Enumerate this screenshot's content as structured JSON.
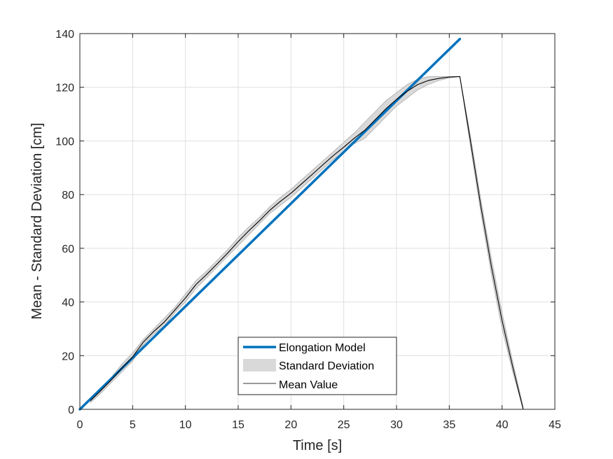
{
  "chart_data": {
    "type": "line",
    "xlabel": "Time [s]",
    "ylabel": "Mean - Standard Deviation [cm]",
    "xlim": [
      0,
      45
    ],
    "ylim": [
      0,
      140
    ],
    "xticks": [
      0,
      5,
      10,
      15,
      20,
      25,
      30,
      35,
      40,
      45
    ],
    "yticks": [
      0,
      20,
      40,
      60,
      80,
      100,
      120,
      140
    ],
    "grid": true,
    "legend_position": "bottom-center",
    "series": [
      {
        "name": "Elongation Model",
        "style": "line",
        "color": "#0072BD",
        "x": [
          0,
          36
        ],
        "y": [
          0,
          138
        ]
      },
      {
        "name": "Standard Deviation",
        "style": "band",
        "color": "#d9d9d9",
        "x": [
          1,
          2,
          3,
          4,
          5,
          6,
          7,
          8,
          9,
          10,
          11,
          12,
          13,
          14,
          15,
          16,
          17,
          18,
          19,
          20,
          21,
          22,
          23,
          24,
          25,
          26,
          27,
          28,
          29,
          30,
          31,
          32,
          33,
          34,
          35,
          36,
          37,
          38,
          39,
          40,
          41,
          42
        ],
        "lower": [
          2.5,
          6,
          10,
          14,
          18,
          24,
          28,
          31,
          36,
          40,
          45,
          49,
          53,
          57,
          61,
          65,
          69,
          73,
          76,
          79,
          82.5,
          86,
          89.5,
          93,
          96,
          99,
          101,
          105,
          109,
          113,
          116,
          119,
          121,
          122.5,
          123.5,
          124,
          98,
          73,
          50,
          30,
          14,
          0
        ],
        "upper": [
          4,
          8,
          12,
          17,
          21,
          26,
          30,
          34,
          38,
          43,
          48,
          51.5,
          55.5,
          59.5,
          64,
          68,
          71.5,
          75.5,
          79,
          82,
          85.5,
          89,
          92.5,
          96,
          99.5,
          103,
          107,
          111,
          115,
          118,
          121,
          123,
          124,
          124,
          124,
          124,
          102,
          78,
          56,
          36,
          18,
          1
        ]
      },
      {
        "name": "Mean Value",
        "style": "line",
        "color": "#000000",
        "x": [
          1,
          2,
          3,
          4,
          5,
          6,
          7,
          8,
          9,
          10,
          11,
          12,
          13,
          14,
          15,
          16,
          17,
          18,
          19,
          20,
          21,
          22,
          23,
          24,
          25,
          26,
          27,
          28,
          29,
          30,
          31,
          32,
          33,
          34,
          35,
          36,
          37,
          38,
          39,
          40,
          41,
          42
        ],
        "y": [
          3.2,
          7,
          11,
          15.5,
          19.5,
          25,
          29,
          32.5,
          37,
          41.5,
          46.5,
          50.2,
          54.2,
          58.2,
          62.5,
          66.5,
          70.2,
          74.2,
          77.5,
          80.5,
          84,
          87.5,
          91,
          94.5,
          97.7,
          101,
          104,
          108,
          112,
          115.5,
          118.5,
          121,
          122.5,
          123.3,
          123.8,
          124,
          100,
          75.5,
          53,
          33,
          16,
          0
        ]
      }
    ]
  }
}
